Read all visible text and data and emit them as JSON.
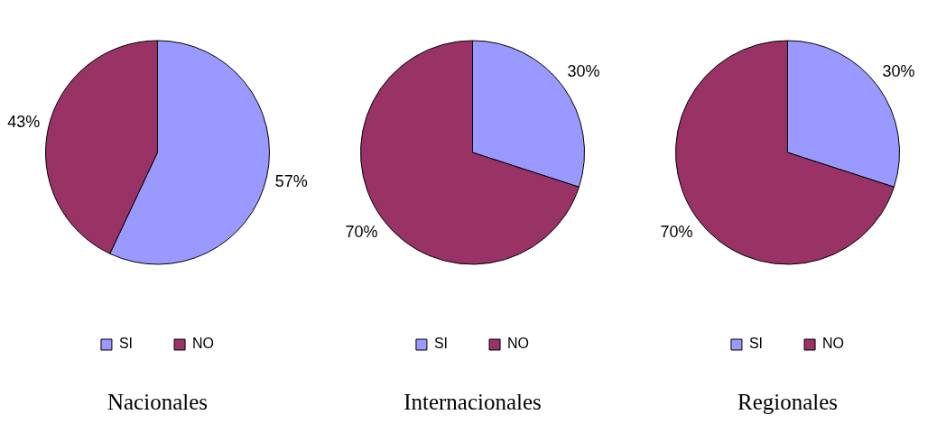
{
  "chart_data": [
    {
      "type": "pie",
      "title": "Nacionales",
      "categories": [
        "SI",
        "NO"
      ],
      "values": [
        57,
        43
      ],
      "value_labels": [
        "57%",
        "43%"
      ],
      "colors": [
        "#9999ff",
        "#993366"
      ],
      "legend": "bottom"
    },
    {
      "type": "pie",
      "title": "Internacionales",
      "categories": [
        "SI",
        "NO"
      ],
      "values": [
        30,
        70
      ],
      "value_labels": [
        "30%",
        "70%"
      ],
      "colors": [
        "#9999ff",
        "#993366"
      ],
      "legend": "bottom"
    },
    {
      "type": "pie",
      "title": "Regionales",
      "categories": [
        "SI",
        "NO"
      ],
      "values": [
        30,
        70
      ],
      "value_labels": [
        "30%",
        "70%"
      ],
      "colors": [
        "#9999ff",
        "#993366"
      ],
      "legend": "bottom"
    }
  ]
}
